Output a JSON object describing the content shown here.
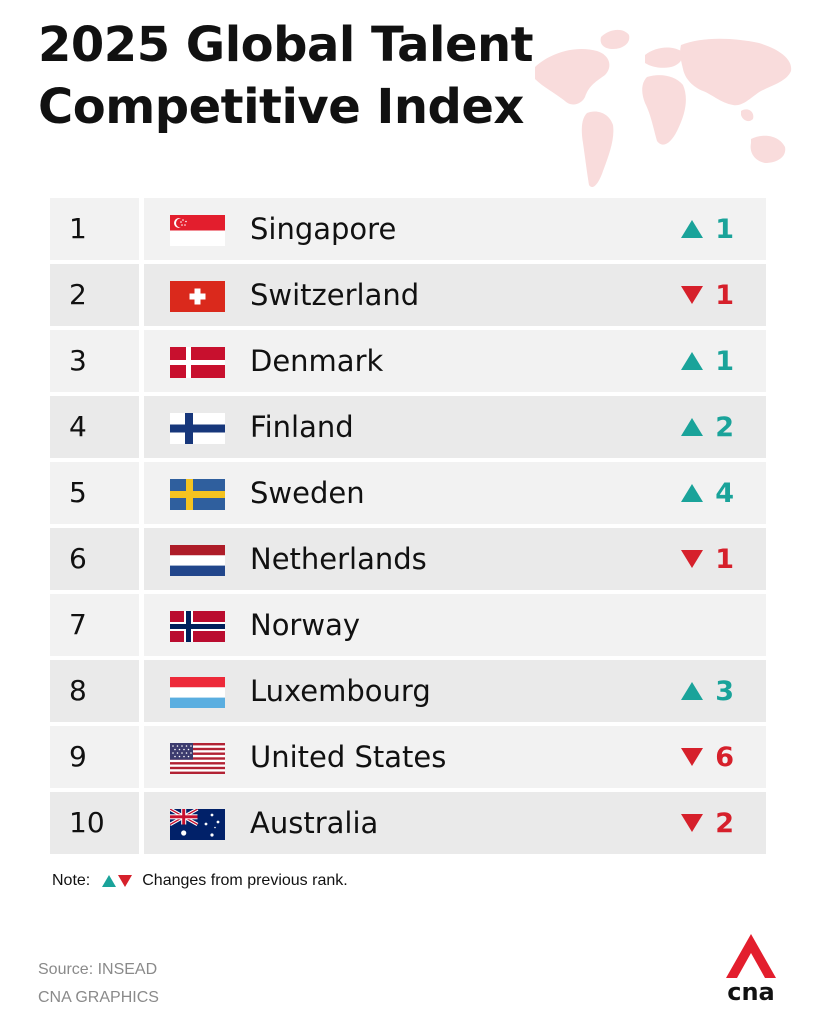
{
  "title_line1": "2025 Global Talent",
  "title_line2": "Competitive Index",
  "colors": {
    "up": "#1aa39a",
    "down": "#d6202b",
    "row_bg": "#f2f2f2",
    "map": "#f9dcdc"
  },
  "rankings": [
    {
      "rank": "1",
      "country": "Singapore",
      "flag": "singapore-flag",
      "direction": "up",
      "change": "1"
    },
    {
      "rank": "2",
      "country": "Switzerland",
      "flag": "switzerland-flag",
      "direction": "down",
      "change": "1"
    },
    {
      "rank": "3",
      "country": "Denmark",
      "flag": "denmark-flag",
      "direction": "up",
      "change": "1"
    },
    {
      "rank": "4",
      "country": "Finland",
      "flag": "finland-flag",
      "direction": "up",
      "change": "2"
    },
    {
      "rank": "5",
      "country": "Sweden",
      "flag": "sweden-flag",
      "direction": "up",
      "change": "4"
    },
    {
      "rank": "6",
      "country": "Netherlands",
      "flag": "netherlands-flag",
      "direction": "down",
      "change": "1"
    },
    {
      "rank": "7",
      "country": "Norway",
      "flag": "norway-flag",
      "direction": "none",
      "change": ""
    },
    {
      "rank": "8",
      "country": "Luxembourg",
      "flag": "luxembourg-flag",
      "direction": "up",
      "change": "3"
    },
    {
      "rank": "9",
      "country": "United States",
      "flag": "united-states-flag",
      "direction": "down",
      "change": "6"
    },
    {
      "rank": "10",
      "country": "Australia",
      "flag": "australia-flag",
      "direction": "down",
      "change": "2"
    }
  ],
  "note_label": "Note:",
  "note_text": "Changes from previous rank.",
  "source": "Source: INSEAD",
  "credit": "CNA GRAPHICS",
  "logo_text": "cna"
}
